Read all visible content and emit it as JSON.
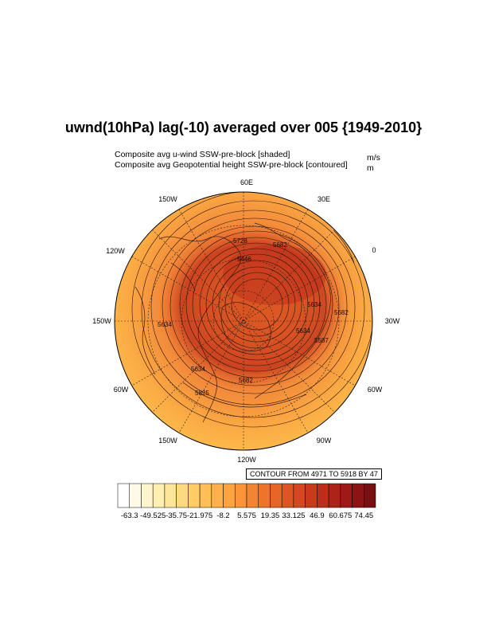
{
  "title": "uwnd(10hPa) lag(-10) averaged over 005 {1949-2010}",
  "subtitle": {
    "line1": "Composite avg u-wind SSW-pre-block [shaded]",
    "line1_units": "m/s",
    "line2": "Composite avg Geopotential height SSW-pre-block [contoured]",
    "line2_units": "m"
  },
  "contour_info": "CONTOUR FROM 4971 TO 5918 BY 47",
  "longitude_labels": {
    "top": "60E",
    "top_right": "30E",
    "top_left": "150W",
    "right_upper": "0",
    "right": "30W",
    "left_upper": "120W",
    "left": "150W",
    "right_lower": "60W",
    "left_lower": "60W",
    "bottom_right": "90W",
    "bottom_left": "150W",
    "bottom": "120W"
  },
  "contour_labels": [
    "5728",
    "5682",
    "5446",
    "5634",
    "5682",
    "5634",
    "5587",
    "5634",
    "5682",
    "5634",
    "5825"
  ],
  "colorbar": {
    "labels": [
      "-63.3",
      "-49.525",
      "-35.75",
      "-21.975",
      "-8.2",
      "5.575",
      "19.35",
      "33.125",
      "46.9",
      "60.675",
      "74.45"
    ],
    "colors": [
      "#ffffff",
      "#fffbe6",
      "#fff5cc",
      "#ffefb0",
      "#ffe599",
      "#ffd97f",
      "#ffcc66",
      "#ffbf57",
      "#ffb24a",
      "#ffa340",
      "#fb9438",
      "#f58432",
      "#ee742c",
      "#e66427",
      "#de5523",
      "#d4471f",
      "#c93a1c",
      "#bd2e1a",
      "#ae2318",
      "#9e1a16",
      "#8c1414",
      "#7a0f12"
    ]
  },
  "chart_data": {
    "type": "polar-stereographic map",
    "shaded_field": "u-wind (m/s)",
    "contour_field": "Geopotential height (m)",
    "contour_min": 4971,
    "contour_max": 5918,
    "contour_interval": 47,
    "shade_range": [
      -63.3,
      74.45
    ]
  }
}
